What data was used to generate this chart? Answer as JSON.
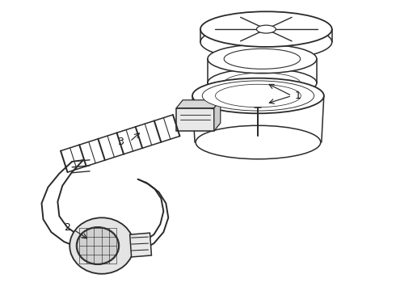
{
  "bg_color": "#ffffff",
  "line_color": "#2a2a2a",
  "line_width": 1.1,
  "label_color": "#111111",
  "label_fontsize": 8.5,
  "fig_width": 4.9,
  "fig_height": 3.6,
  "dpi": 100
}
